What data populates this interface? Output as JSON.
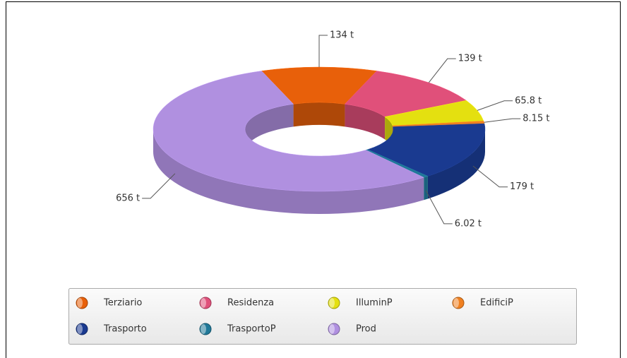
{
  "chart_data": {
    "type": "donut3d",
    "categories": [
      "Terziario",
      "Residenza",
      "IlluminP",
      "EdificiP",
      "Trasporto",
      "TrasportoP",
      "Prod"
    ],
    "values": [
      134,
      139,
      65.8,
      8.15,
      179,
      6.02,
      656
    ],
    "value_labels": [
      "134 t",
      "139 t",
      "65.8 t",
      "8.15 t",
      "179 t",
      "6.02 t",
      "656 t"
    ],
    "colors": [
      "#e8600a",
      "#e0507a",
      "#e4e010",
      "#f08020",
      "#1a3a90",
      "#207898",
      "#b090e0"
    ],
    "legend": "bottom"
  }
}
